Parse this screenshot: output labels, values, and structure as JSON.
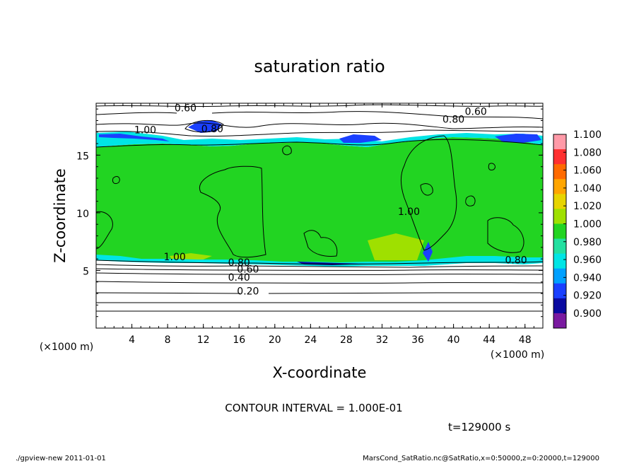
{
  "chart_data": {
    "type": "heatmap",
    "title": "saturation ratio",
    "xlabel": "X-coordinate",
    "ylabel": "Z-coordinate",
    "x_unit": "(×1000 m)",
    "y_unit": "(×1000 m)",
    "xlim": [
      0,
      50
    ],
    "ylim": [
      0,
      19.5
    ],
    "x_ticks": [
      4,
      8,
      12,
      16,
      20,
      24,
      28,
      32,
      36,
      40,
      44,
      48
    ],
    "y_ticks": [
      5,
      10,
      15
    ],
    "contour_interval_text": "CONTOUR INTERVAL = 1.000E-01",
    "time_text": "t=129000 s",
    "contour_labels": [
      {
        "text": "0.60",
        "x": 10.0,
        "z": 18.8
      },
      {
        "text": "0.60",
        "x": 42.5,
        "z": 18.5
      },
      {
        "text": "0.80",
        "x": 13.0,
        "z": 17.0
      },
      {
        "text": "0.80",
        "x": 40.0,
        "z": 17.8
      },
      {
        "text": "1.00",
        "x": 5.5,
        "z": 16.9
      },
      {
        "text": "1.00",
        "x": 35.0,
        "z": 9.8
      },
      {
        "text": "1.00",
        "x": 8.8,
        "z": 5.9
      },
      {
        "text": "0.80",
        "x": 16.0,
        "z": 5.4
      },
      {
        "text": "0.60",
        "x": 17.0,
        "z": 4.8
      },
      {
        "text": "0.40",
        "x": 16.0,
        "z": 4.1
      },
      {
        "text": "0.20",
        "x": 17.0,
        "z": 2.9
      },
      {
        "text": "0.80",
        "x": 47.0,
        "z": 5.6
      }
    ],
    "colorbar": {
      "ticks": [
        "1.100",
        "1.080",
        "1.060",
        "1.040",
        "1.020",
        "1.000",
        "0.980",
        "0.960",
        "0.940",
        "0.920",
        "0.900"
      ],
      "colors": [
        "#ff9aa8",
        "#ff3030",
        "#ff6a00",
        "#ffa500",
        "#e7d400",
        "#9fe000",
        "#22d422",
        "#22e0a0",
        "#00e5e5",
        "#00a0ff",
        "#1a40ff",
        "#0a0aa0",
        "#7a1aa0"
      ]
    },
    "colors": {
      "main_field": "#22d422",
      "cyan": "#00e5e5",
      "blue": "#1a40ff",
      "navy": "#0a0aa0"
    }
  },
  "footer": {
    "left": "./gpview-new   2011-01-01",
    "right": "MarsCond_SatRatio.nc@SatRatio,x=0:50000,z=0:20000,t=129000"
  }
}
